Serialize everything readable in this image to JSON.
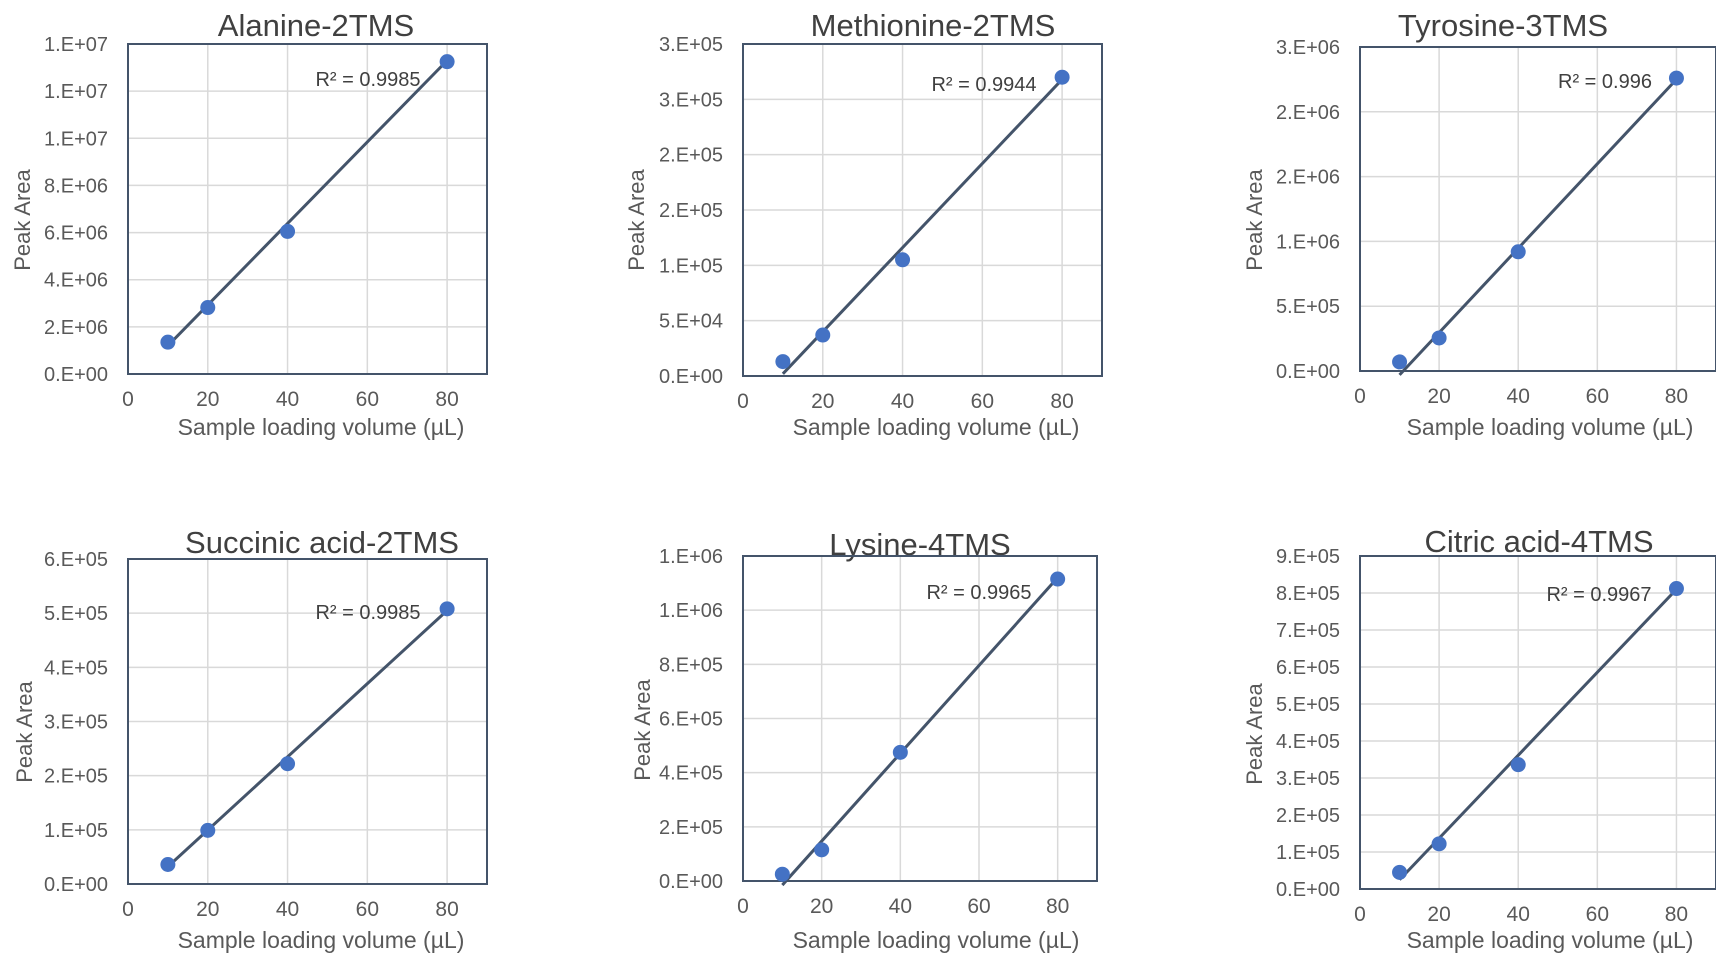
{
  "chart_data": [
    {
      "type": "scatter",
      "title": "Alanine-2TMS",
      "xlabel": "Sample loading volume (µL)",
      "ylabel": "Peak Area",
      "xlim": [
        0,
        90
      ],
      "xticks": [
        0,
        20,
        40,
        60,
        80
      ],
      "xtick_labels": [
        "0",
        "20",
        "40",
        "60",
        "80"
      ],
      "ylim": [
        0,
        14000000
      ],
      "yticks": [
        0,
        2000000,
        4000000,
        6000000,
        8000000,
        10000000,
        12000000,
        14000000
      ],
      "ytick_labels": [
        "0.E+00",
        "2.E+06",
        "4.E+06",
        "6.E+06",
        "8.E+06",
        "1.E+07",
        "1.E+07",
        "1.E+07"
      ],
      "x": [
        10,
        20,
        40,
        80
      ],
      "y": [
        1350000,
        2820000,
        6050000,
        13250000
      ],
      "trendline": {
        "type": "linear",
        "x": [
          10,
          80
        ],
        "y": [
          1200000,
          13300000
        ]
      },
      "r2_label": "R² = 0.9985",
      "grid": true,
      "colors": {
        "point": "#4472c4",
        "line": "#44546a"
      }
    },
    {
      "type": "scatter",
      "title": "Methionine-2TMS",
      "xlabel": "Sample loading volume (µL)",
      "ylabel": "Peak Area",
      "xlim": [
        0,
        90
      ],
      "xticks": [
        0,
        20,
        40,
        60,
        80
      ],
      "xtick_labels": [
        "0",
        "20",
        "40",
        "60",
        "80"
      ],
      "ylim": [
        0,
        300000
      ],
      "yticks": [
        0,
        50000,
        100000,
        150000,
        200000,
        250000,
        300000
      ],
      "ytick_labels": [
        "0.E+00",
        "5.E+04",
        "1.E+05",
        "2.E+05",
        "2.E+05",
        "3.E+05",
        "3.E+05"
      ],
      "x": [
        10,
        20,
        40,
        80
      ],
      "y": [
        13000,
        37000,
        105000,
        270000
      ],
      "trendline": {
        "type": "linear",
        "x": [
          10,
          80
        ],
        "y": [
          2000,
          268000
        ]
      },
      "r2_label": "R² = 0.9944",
      "grid": true,
      "colors": {
        "point": "#4472c4",
        "line": "#44546a"
      }
    },
    {
      "type": "scatter",
      "title": "Tyrosine-3TMS",
      "xlabel": "Sample loading volume (µL)",
      "ylabel": "Peak Area",
      "xlim": [
        0,
        90
      ],
      "xticks": [
        0,
        20,
        40,
        60,
        80
      ],
      "xtick_labels": [
        "0",
        "20",
        "40",
        "60",
        "80"
      ],
      "ylim": [
        0,
        2500000
      ],
      "yticks": [
        0,
        500000,
        1000000,
        1500000,
        2000000,
        2500000
      ],
      "ytick_labels": [
        "0.E+00",
        "5.E+05",
        "1.E+06",
        "2.E+06",
        "2.E+06",
        "3.E+06"
      ],
      "x": [
        10,
        20,
        40,
        80
      ],
      "y": [
        70000,
        255000,
        920000,
        2260000
      ],
      "trendline": {
        "type": "linear",
        "x": [
          10,
          80
        ],
        "y": [
          -30000,
          2250000
        ]
      },
      "r2_label": "R² = 0.996",
      "grid": true,
      "colors": {
        "point": "#4472c4",
        "line": "#44546a"
      }
    },
    {
      "type": "scatter",
      "title": "Succinic acid-2TMS",
      "xlabel": "Sample loading volume (µL)",
      "ylabel": "Peak Area",
      "xlim": [
        0,
        90
      ],
      "xticks": [
        0,
        20,
        40,
        60,
        80
      ],
      "xtick_labels": [
        "0",
        "20",
        "40",
        "60",
        "80"
      ],
      "ylim": [
        0,
        600000
      ],
      "yticks": [
        0,
        100000,
        200000,
        300000,
        400000,
        500000,
        600000
      ],
      "ytick_labels": [
        "0.E+00",
        "1.E+05",
        "2.E+05",
        "3.E+05",
        "4.E+05",
        "5.E+05",
        "6.E+05"
      ],
      "x": [
        10,
        20,
        40,
        80
      ],
      "y": [
        36000,
        99000,
        222000,
        508000
      ],
      "trendline": {
        "type": "linear",
        "x": [
          10,
          80
        ],
        "y": [
          32000,
          505000
        ]
      },
      "r2_label": "R² = 0.9985",
      "grid": true,
      "colors": {
        "point": "#4472c4",
        "line": "#44546a"
      }
    },
    {
      "type": "scatter",
      "title": "Lysine-4TMS",
      "xlabel": "Sample loading volume (µL)",
      "ylabel": "Peak Area",
      "xlim": [
        0,
        90
      ],
      "xticks": [
        0,
        20,
        40,
        60,
        80
      ],
      "xtick_labels": [
        "0",
        "20",
        "40",
        "60",
        "80"
      ],
      "ylim": [
        0,
        1200000
      ],
      "yticks": [
        0,
        200000,
        400000,
        600000,
        800000,
        1000000,
        1200000
      ],
      "ytick_labels": [
        "0.E+00",
        "2.E+05",
        "4.E+05",
        "6.E+05",
        "8.E+05",
        "1.E+06",
        "1.E+06"
      ],
      "x": [
        10,
        20,
        40,
        80
      ],
      "y": [
        25000,
        115000,
        475000,
        1115000
      ],
      "trendline": {
        "type": "linear",
        "x": [
          10,
          80
        ],
        "y": [
          -15000,
          1120000
        ]
      },
      "r2_label": "R² = 0.9965",
      "grid": true,
      "colors": {
        "point": "#4472c4",
        "line": "#44546a"
      }
    },
    {
      "type": "scatter",
      "title": "Citric acid-4TMS",
      "xlabel": "Sample loading volume (µL)",
      "ylabel": "Peak Area",
      "xlim": [
        0,
        90
      ],
      "xticks": [
        0,
        20,
        40,
        60,
        80
      ],
      "xtick_labels": [
        "0",
        "20",
        "40",
        "60",
        "80"
      ],
      "ylim": [
        0,
        900000
      ],
      "yticks": [
        0,
        100000,
        200000,
        300000,
        400000,
        500000,
        600000,
        700000,
        800000,
        900000
      ],
      "ytick_labels": [
        "0.E+00",
        "1.E+05",
        "2.E+05",
        "3.E+05",
        "4.E+05",
        "5.E+05",
        "6.E+05",
        "7.E+05",
        "8.E+05",
        "9.E+05"
      ],
      "x": [
        10,
        20,
        40,
        80
      ],
      "y": [
        45000,
        122000,
        336000,
        812000
      ],
      "trendline": {
        "type": "linear",
        "x": [
          10,
          80
        ],
        "y": [
          25000,
          810000
        ]
      },
      "r2_label": "R² = 0.9967",
      "grid": true,
      "colors": {
        "point": "#4472c4",
        "line": "#44546a"
      }
    }
  ]
}
